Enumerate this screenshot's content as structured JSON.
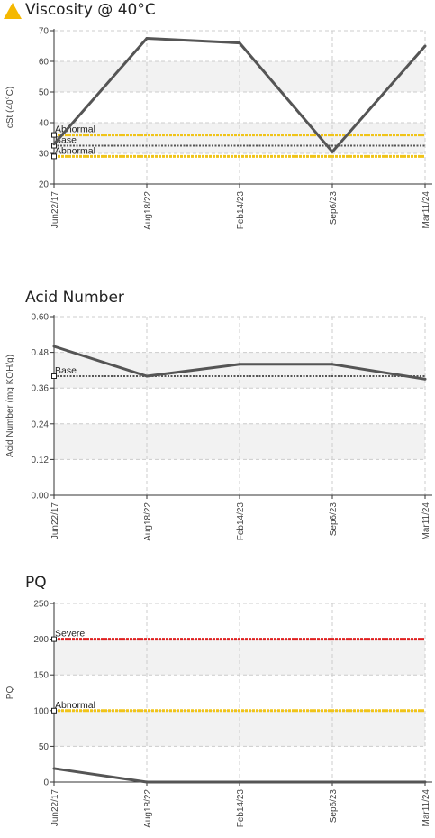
{
  "colors": {
    "line": "#555555",
    "abnormal": "#f0c419",
    "severe": "#e02020",
    "base": "#555555",
    "grid": "#cccccc",
    "band": "#f2f2f2",
    "warning": "#f5b800"
  },
  "charts": [
    {
      "title": "Viscosity @ 40°C",
      "warning_icon": "warning-triangle-icon"
    },
    {
      "title": "Acid Number",
      "warning_icon": ""
    },
    {
      "title": "PQ",
      "warning_icon": ""
    }
  ],
  "chart_data": [
    {
      "type": "line",
      "title": "Viscosity @ 40°C",
      "ylabel": "cSt (40°C)",
      "xlabel": "",
      "categories": [
        "Jun22/17",
        "Aug18/22",
        "Feb14/23",
        "Sep6/23",
        "Mar11/24"
      ],
      "ylim": [
        20,
        70
      ],
      "yticks": [
        "70",
        "60",
        "50",
        "40",
        "30",
        "20"
      ],
      "series": [
        {
          "values": [
            33,
            67.5,
            66,
            30.5,
            65
          ]
        }
      ],
      "reference_lines": [
        {
          "label": "Abnormal",
          "value": 36,
          "color": "abnormal"
        },
        {
          "label": "Base",
          "value": 32.5,
          "color": "base"
        },
        {
          "label": "Abnormal",
          "value": 29,
          "color": "abnormal"
        }
      ],
      "grid": true
    },
    {
      "type": "line",
      "title": "Acid Number",
      "ylabel": "Acid Number (mg KOH/g)",
      "xlabel": "",
      "categories": [
        "Jun22/17",
        "Aug18/22",
        "Feb14/23",
        "Sep6/23",
        "Mar11/24"
      ],
      "ylim": [
        0,
        0.6
      ],
      "yticks": [
        "0.60",
        "0.48",
        "0.36",
        "0.24",
        "0.12",
        "0.00"
      ],
      "series": [
        {
          "values": [
            0.5,
            0.4,
            0.44,
            0.44,
            0.39
          ]
        }
      ],
      "reference_lines": [
        {
          "label": "Base",
          "value": 0.4,
          "color": "base"
        }
      ],
      "grid": true
    },
    {
      "type": "line",
      "title": "PQ",
      "ylabel": "PQ",
      "xlabel": "",
      "categories": [
        "Jun22/17",
        "Aug18/22",
        "Feb14/23",
        "Sep6/23",
        "Mar11/24"
      ],
      "ylim": [
        0,
        250
      ],
      "yticks": [
        "250",
        "200",
        "150",
        "100",
        "50",
        "0"
      ],
      "series": [
        {
          "values": [
            19,
            0,
            0,
            0,
            0
          ]
        }
      ],
      "reference_lines": [
        {
          "label": "Severe",
          "value": 200,
          "color": "severe"
        },
        {
          "label": "Abnormal",
          "value": 100,
          "color": "abnormal"
        }
      ],
      "grid": true
    }
  ]
}
